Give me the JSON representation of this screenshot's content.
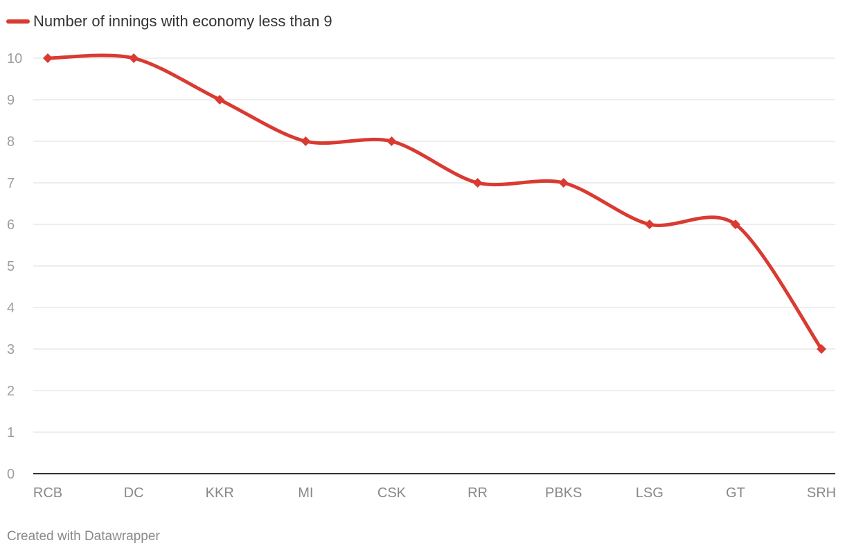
{
  "chart_data": {
    "type": "line",
    "categories": [
      "RCB",
      "DC",
      "KKR",
      "MI",
      "CSK",
      "RR",
      "PBKS",
      "LSG",
      "GT",
      "SRH"
    ],
    "series": [
      {
        "name": "Number of innings with economy less than 9",
        "values": [
          10,
          10,
          9,
          8,
          8,
          7,
          7,
          6,
          6,
          3
        ],
        "color": "#d93a31"
      }
    ],
    "y_ticks": [
      0,
      1,
      2,
      3,
      4,
      5,
      6,
      7,
      8,
      9,
      10
    ],
    "ylim": [
      0,
      10
    ],
    "grid": true,
    "curve": "smooth",
    "marker": "diamond",
    "legend_position": "top-left"
  },
  "credit": "Created with Datawrapper"
}
